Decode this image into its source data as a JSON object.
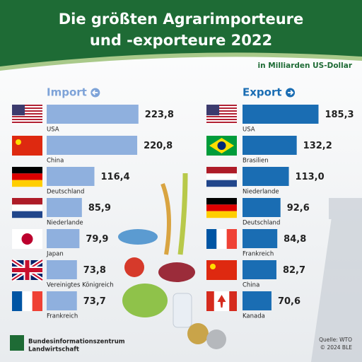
{
  "header": {
    "title_line1": "Die größten Agrarimporteure",
    "title_line2": "und -exporteure 2022",
    "subtitle": "in Milliarden US-Dollar"
  },
  "chart_data": [
    {
      "type": "bar",
      "title": "Import",
      "color": "#8fb0de",
      "title_color": "#7ea3d8",
      "categories": [
        "USA",
        "China",
        "Deutschland",
        "Niederlande",
        "Japan",
        "Vereinigtes Königreich",
        "Frankreich"
      ],
      "values": [
        223.8,
        220.8,
        116.4,
        85.9,
        79.9,
        73.8,
        73.7
      ],
      "value_labels": [
        "223,8",
        "220,8",
        "116,4",
        "85,9",
        "79,9",
        "73,8",
        "73,7"
      ]
    },
    {
      "type": "bar",
      "title": "Export",
      "color": "#1a6db3",
      "title_color": "#1a6db3",
      "categories": [
        "USA",
        "Brasilien",
        "Niederlande",
        "Deutschland",
        "Frankreich",
        "China",
        "Kanada"
      ],
      "values": [
        185.3,
        132.2,
        113.0,
        92.6,
        84.8,
        82.7,
        70.6
      ],
      "value_labels": [
        "185,3",
        "132,2",
        "113,0",
        "92,6",
        "84,8",
        "82,7",
        "70,6"
      ]
    }
  ],
  "footer": {
    "logo_line1": "Bundesinformationszentrum",
    "logo_line2": "Landwirtschaft",
    "source": "Quelle: WTO",
    "copyright": "© 2024 BLE"
  }
}
